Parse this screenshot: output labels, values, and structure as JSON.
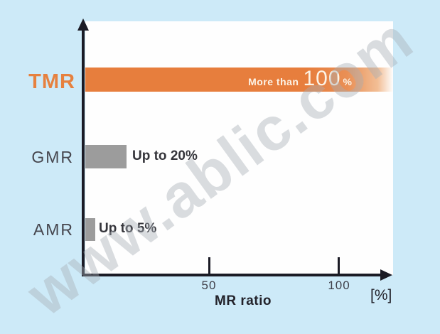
{
  "watermark": {
    "text": "www.ablic.com"
  },
  "colors": {
    "background": "#CDEAF8",
    "plot_background": "#FEFEFE",
    "axis": "#1B1B25",
    "tmr_bar": "#E77E3D",
    "gray_bar": "#9C9C9C",
    "tmr_label": "#E6813F",
    "category_label": "#46464E",
    "annotation_text": "#35353B",
    "bar_inner_text": "#FCF3E6"
  },
  "chart_data": {
    "type": "bar",
    "orientation": "horizontal",
    "categories": [
      "TMR",
      "GMR",
      "AMR"
    ],
    "values": [
      120,
      20,
      5
    ],
    "value_descriptions": [
      "More than 100 %",
      "Up to 20%",
      "Up to 5%"
    ],
    "xlabel": "MR ratio",
    "x_unit": "[%]",
    "x_ticks": [
      50,
      100
    ],
    "xlim": [
      0,
      122
    ],
    "grid": false,
    "legend": false,
    "notes": "TMR bar spans full axis width and fades out past 100%; GMR and AMR bars are gray"
  },
  "axis_labels": {
    "tick_50": "50",
    "tick_100": "100",
    "xlabel": "MR ratio",
    "unit": "[%]"
  },
  "annotations": {
    "tmr_prefix": "More than",
    "tmr_value": "100",
    "tmr_suffix": "%",
    "gmr": "Up to 20%",
    "amr": "Up to 5%"
  }
}
